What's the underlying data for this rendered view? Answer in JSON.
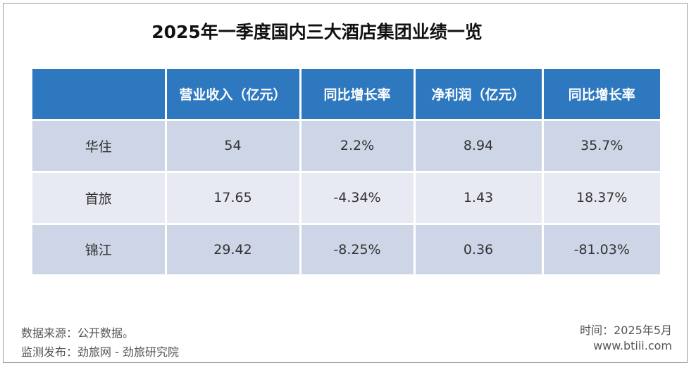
{
  "title": "2025年一季度国内三大酒店集团业绩一览",
  "table": {
    "columns": [
      "营业收入（亿元）",
      "同比增长率",
      "净利润（亿元）",
      "同比增长率"
    ],
    "rows": [
      [
        "华住",
        "54",
        "2.2%",
        "8.94",
        "35.7%"
      ],
      [
        "首旅",
        "17.65",
        "-4.34%",
        "1.43",
        "18.37%"
      ],
      [
        "锦江",
        "29.42",
        "-8.25%",
        "0.36",
        "-81.03%"
      ]
    ]
  },
  "footer": {
    "source": "数据来源：公开数据。",
    "publisher": "监测发布：劲旅网 - 劲旅研究院",
    "date": "时间：2025年5月",
    "website": "www.btiii.com"
  }
}
